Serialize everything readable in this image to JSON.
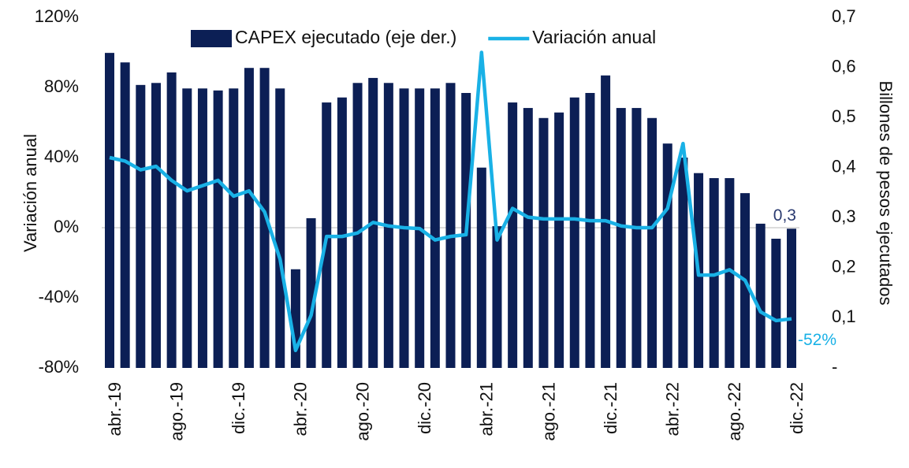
{
  "chart_data": {
    "type": "bar-line",
    "y_label": "Variación anual",
    "y2_label": "Billones de pesos ejecutados",
    "categories": [
      "abr.-19",
      null,
      null,
      null,
      "ago.-19",
      null,
      null,
      null,
      "dic.-19",
      null,
      null,
      null,
      "abr.-20",
      null,
      null,
      null,
      "ago.-20",
      null,
      null,
      null,
      "dic.-20",
      null,
      null,
      null,
      "abr.-21",
      null,
      null,
      null,
      "ago.-21",
      null,
      null,
      null,
      "dic.-21",
      null,
      null,
      null,
      "abr.-22",
      null,
      null,
      null,
      "ago.-22",
      null,
      null,
      null,
      "dic.-22"
    ],
    "series": [
      {
        "name": "CAPEX ejecutado (eje der.)",
        "type": "bar",
        "axis": "y2",
        "color": "#0c1f55",
        "values": [
          0.629,
          0.61,
          0.565,
          0.569,
          0.59,
          0.558,
          0.558,
          0.554,
          0.558,
          0.599,
          0.599,
          0.558,
          0.197,
          0.299,
          0.53,
          0.54,
          0.569,
          0.579,
          0.569,
          0.558,
          0.558,
          0.558,
          0.569,
          0.549,
          0.4,
          0.283,
          0.53,
          0.519,
          0.499,
          0.51,
          0.54,
          0.549,
          0.584,
          0.519,
          0.519,
          0.499,
          0.448,
          0.42,
          0.389,
          0.379,
          0.379,
          0.349,
          0.288,
          0.258,
          0.278
        ],
        "value_labels": [
          null,
          null,
          null,
          null,
          null,
          null,
          null,
          null,
          null,
          null,
          null,
          null,
          null,
          null,
          null,
          null,
          null,
          null,
          null,
          null,
          null,
          null,
          null,
          null,
          null,
          null,
          null,
          null,
          null,
          null,
          null,
          null,
          null,
          null,
          null,
          null,
          null,
          null,
          null,
          null,
          null,
          null,
          null,
          null,
          "0,3"
        ]
      },
      {
        "name": "Variación anual",
        "type": "line",
        "axis": "y",
        "color": "#19b1e6",
        "values": [
          40,
          38,
          33,
          35,
          27,
          21,
          24,
          27,
          18,
          21,
          9,
          -18,
          -70,
          -50,
          -5,
          -5,
          -3,
          3,
          1,
          0,
          -0.5,
          -7,
          -5,
          -4,
          100,
          -7,
          11,
          6,
          5,
          5,
          5,
          4,
          4,
          1,
          0,
          0,
          11,
          48,
          -27,
          -27,
          -24,
          -30,
          -48,
          -53,
          -52
        ],
        "value_labels": [
          null,
          null,
          null,
          null,
          null,
          null,
          null,
          null,
          null,
          null,
          null,
          null,
          null,
          null,
          null,
          null,
          null,
          null,
          null,
          null,
          null,
          null,
          null,
          null,
          null,
          null,
          null,
          null,
          null,
          null,
          null,
          null,
          null,
          null,
          null,
          null,
          null,
          null,
          null,
          null,
          null,
          null,
          null,
          null,
          "-52%"
        ]
      }
    ],
    "ylim": [
      -80,
      120
    ],
    "yticks": [
      {
        "value": -80,
        "label": "-80%"
      },
      {
        "value": -40,
        "label": "-40%"
      },
      {
        "value": 0,
        "label": "0%"
      },
      {
        "value": 40,
        "label": "40%"
      },
      {
        "value": 80,
        "label": "80%"
      },
      {
        "value": 120,
        "label": "120%"
      }
    ],
    "y2lim": [
      0,
      0.7
    ],
    "y2ticks": [
      {
        "value": 0,
        "label": "-"
      },
      {
        "value": 0.1,
        "label": "0,1"
      },
      {
        "value": 0.2,
        "label": "0,2"
      },
      {
        "value": 0.3,
        "label": "0,3"
      },
      {
        "value": 0.4,
        "label": "0,4"
      },
      {
        "value": 0.5,
        "label": "0,5"
      },
      {
        "value": 0.6,
        "label": "0,6"
      },
      {
        "value": 0.7,
        "label": "0,7"
      }
    ],
    "legend": "top"
  }
}
